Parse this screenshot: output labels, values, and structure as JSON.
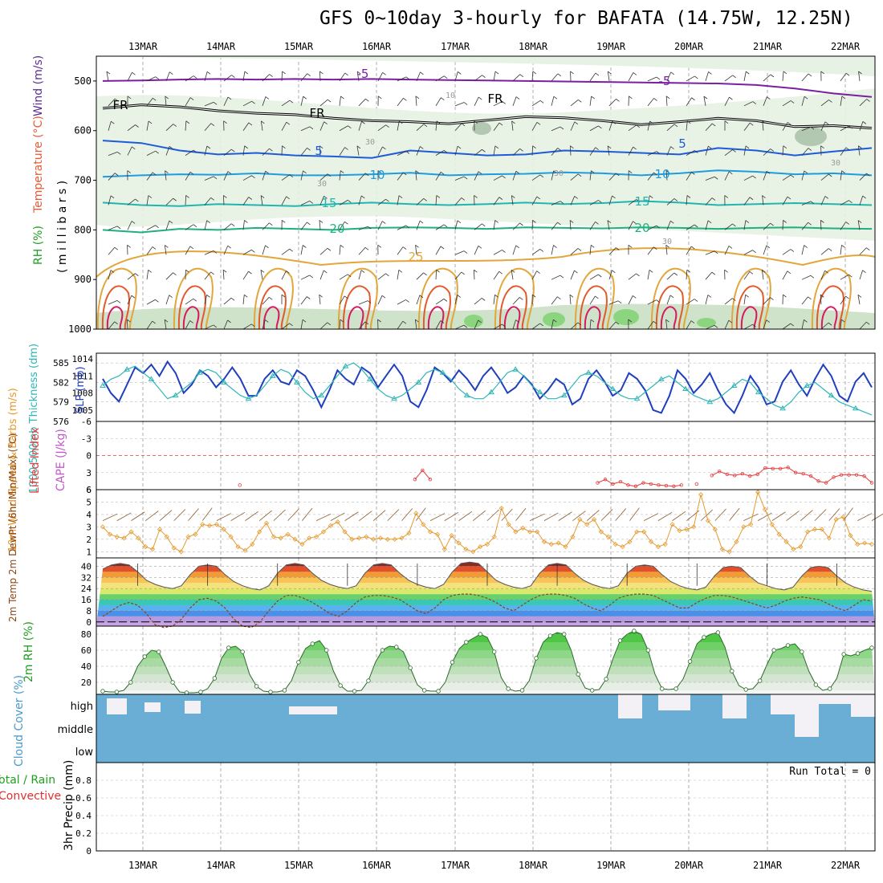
{
  "title": "GFS 0~10day 3-hourly for BAFATA (14.75W, 12.25N)",
  "date_labels": [
    "13MAR",
    "14MAR",
    "15MAR",
    "16MAR",
    "17MAR",
    "18MAR",
    "19MAR",
    "20MAR",
    "21MAR",
    "22MAR"
  ],
  "colors": {
    "rh": "#2eb82e",
    "temperature": "#e85a36",
    "wind": "#5a2d91",
    "slp": "#1f3fbf",
    "thickness": "#2fb6b6",
    "lifted_index": "#e33d3d",
    "cape": "#c05ac8",
    "wind10": "#e59a2e",
    "temp2m": "#8b4513",
    "rh2m": "#20a020",
    "cloud": "#6aaed6",
    "precip_total": "#20a020",
    "precip_conv": "#e33030"
  },
  "chart_data": [
    {
      "type": "line",
      "panel": "upper-air cross section",
      "ylabel_parts": [
        "RH (%)",
        "Temperature (°C)",
        "Wind (m/s)"
      ],
      "ylabel_units": "( m i l l i b a r s )",
      "yticks": [
        "500",
        "600",
        "700",
        "800",
        "900",
        "1000"
      ],
      "ylim": [
        1000,
        450
      ],
      "isotherm_labels": [
        "-5",
        "FR",
        "5",
        "10",
        "15",
        "20",
        "25"
      ],
      "rh_labels": [
        "10",
        "30",
        "30",
        "30",
        "30",
        "30"
      ],
      "isotherms": [
        {
          "label": "-5",
          "p": [
            500,
            499,
            497,
            496,
            497,
            496,
            497,
            496,
            497,
            498,
            499,
            500,
            501,
            502,
            503,
            504,
            505,
            508,
            515,
            525,
            532
          ]
        },
        {
          "label": "FR",
          "p": [
            555,
            548,
            552,
            560,
            565,
            568,
            575,
            580,
            582,
            586,
            579,
            572,
            574,
            580,
            588,
            582,
            575,
            580,
            592,
            590,
            595
          ]
        },
        {
          "label": "5",
          "p": [
            620,
            625,
            640,
            648,
            645,
            650,
            652,
            655,
            640,
            645,
            650,
            648,
            640,
            642,
            645,
            648,
            635,
            640,
            650,
            642,
            635
          ]
        },
        {
          "label": "10",
          "p": [
            693,
            690,
            688,
            689,
            686,
            690,
            690,
            688,
            685,
            690,
            688,
            687,
            684,
            686,
            690,
            686,
            680,
            683,
            688,
            686,
            690
          ]
        },
        {
          "label": "15",
          "p": [
            745,
            750,
            752,
            748,
            750,
            752,
            748,
            745,
            748,
            750,
            748,
            745,
            748,
            746,
            742,
            745,
            750,
            748,
            746,
            748,
            750
          ]
        },
        {
          "label": "20",
          "p": [
            800,
            805,
            798,
            800,
            796,
            798,
            800,
            796,
            795,
            796,
            798,
            795,
            796,
            797,
            795,
            796,
            798,
            796,
            795,
            797,
            798
          ]
        }
      ]
    },
    {
      "type": "line",
      "panel": "SLP / thickness",
      "ylabel_left": "1000-500mb Thickness (dm)",
      "ylabel_right": "SLP (mb)",
      "left_ticks": [
        "585",
        "582",
        "579",
        "576"
      ],
      "right_ticks": [
        "1014",
        "1011",
        "1008",
        "1005"
      ],
      "series": [
        {
          "name": "SLP (mb)",
          "values": [
            1010.5,
            1008,
            1006.5,
            1009.5,
            1012.5,
            1011.5,
            1013,
            1011,
            1013.5,
            1011.5,
            1008,
            1009.5,
            1012,
            1011,
            1009,
            1010.5,
            1012.5,
            1010.5,
            1007.5,
            1007.5,
            1010.5,
            1012,
            1010,
            1009.5,
            1012,
            1011,
            1008.5,
            1005.5,
            1008.5,
            1012,
            1010.5,
            1009.5,
            1012.5,
            1011.5,
            1009,
            1011,
            1013,
            1011,
            1006.5,
            1005.5,
            1008.5,
            1012.5,
            1011.5,
            1010,
            1012,
            1010.5,
            1008.5,
            1011,
            1012.5,
            1010.5,
            1008,
            1009,
            1011,
            1009.5,
            1007,
            1008.5,
            1010.5,
            1009.5,
            1006,
            1007,
            1010.5,
            1012,
            1010,
            1007.5,
            1008.5,
            1011.5,
            1010.5,
            1008.5,
            1005,
            1004.5,
            1007.5,
            1012,
            1010.5,
            1008,
            1009.5,
            1011.5,
            1008.5,
            1006,
            1004.5,
            1007.5,
            1011,
            1009,
            1006,
            1006.5,
            1010,
            1012,
            1009.5,
            1007.5,
            1010.5,
            1013,
            1011,
            1007.5,
            1006.5,
            1010,
            1011.5,
            1009
          ]
        },
        {
          "name": "1000-500mb Thickness (dm)",
          "values": [
            581.5,
            582.5,
            583,
            584,
            584.5,
            583.5,
            582.5,
            581,
            579.5,
            580,
            581,
            582,
            583.5,
            584,
            583.5,
            582,
            581,
            580,
            579.5,
            580,
            581.5,
            583,
            584,
            583.5,
            582,
            580.5,
            579.5,
            580,
            581.5,
            583,
            584.5,
            585,
            584,
            582.5,
            581,
            580,
            579.5,
            580,
            581,
            582,
            583.5,
            584,
            583.5,
            582.5,
            581,
            580,
            579.5,
            579.5,
            580.5,
            582,
            583.5,
            584,
            583,
            581.5,
            580.5,
            579.5,
            579.5,
            580,
            581.5,
            583,
            583.5,
            583,
            582,
            581,
            580,
            579.5,
            579.5,
            580.5,
            581.5,
            582.5,
            583,
            582,
            581,
            580,
            579.5,
            579,
            579.5,
            580.5,
            581.5,
            582.5,
            582,
            580.5,
            579.5,
            578.5,
            578,
            579,
            580.5,
            581.5,
            582,
            581,
            580,
            579,
            578.5,
            578,
            577.5,
            577
          ]
        }
      ]
    },
    {
      "type": "line",
      "panel": "Lifted Index / CAPE",
      "ylabel_left": "Lifted Index",
      "ylabel_right": "CAPE (J/kg)",
      "yticks": [
        "-6",
        "-3",
        "0",
        "3",
        "6"
      ],
      "ylim": [
        -6,
        6
      ],
      "series": [
        {
          "name": "Lifted Index",
          "values": [
            null,
            null,
            null,
            null,
            null,
            null,
            null,
            null,
            null,
            null,
            null,
            null,
            null,
            null,
            null,
            null,
            null,
            null,
            5.2,
            null,
            null,
            null,
            null,
            null,
            null,
            null,
            null,
            null,
            null,
            null,
            null,
            null,
            null,
            null,
            null,
            null,
            null,
            null,
            null,
            null,
            null,
            4.2,
            2.6,
            4.2,
            null,
            null,
            null,
            null,
            null,
            null,
            null,
            null,
            null,
            null,
            null,
            null,
            null,
            null,
            null,
            null,
            null,
            null,
            null,
            null,
            null,
            4.8,
            4.2,
            5.0,
            4.6,
            5.2,
            5.4,
            4.8,
            5.0,
            5.2,
            5.3,
            5.4,
            5.2,
            null,
            5.0,
            null,
            3.5,
            2.8,
            3.3,
            3.5,
            3.2,
            3.6,
            3.3,
            2.2,
            2.3,
            2.3,
            2.1,
            3.0,
            3.2,
            3.6,
            4.5,
            4.8,
            3.8,
            3.4,
            3.4,
            3.4,
            3.6,
            4.8
          ]
        }
      ]
    },
    {
      "type": "line",
      "panel": "10m wind",
      "ylabel": "10m Wind Speed & Barbs (m/s)",
      "yticks": [
        "1",
        "2",
        "3",
        "4",
        "5",
        "6"
      ],
      "ylim": [
        0.5,
        6
      ],
      "series": [
        {
          "name": "10m Wind Speed",
          "values": [
            3.0,
            2.4,
            2.2,
            2.1,
            2.6,
            2.1,
            1.4,
            1.2,
            2.8,
            2.2,
            1.3,
            1.0,
            2.2,
            2.4,
            3.2,
            3.1,
            3.2,
            2.8,
            2.2,
            1.4,
            1.1,
            1.6,
            2.6,
            3.3,
            2.2,
            2.1,
            2.4,
            2.0,
            1.6,
            2.1,
            2.2,
            2.6,
            3.1,
            3.4,
            2.6,
            2.0,
            2.1,
            2.2,
            2.0,
            2.1,
            2.0,
            2.0,
            2.1,
            2.5,
            4.1,
            3.2,
            2.6,
            2.4,
            1.2,
            2.3,
            1.7,
            1.2,
            1.0,
            1.4,
            1.6,
            2.2,
            4.5,
            3.2,
            2.6,
            2.9,
            2.6,
            2.6,
            1.8,
            1.6,
            1.7,
            1.4,
            2.2,
            3.6,
            3.2,
            3.6,
            2.6,
            2.2,
            1.6,
            1.4,
            1.8,
            2.6,
            2.6,
            1.8,
            1.4,
            1.6,
            3.2,
            2.7,
            2.8,
            3.0,
            5.6,
            3.5,
            2.8,
            1.2,
            1.0,
            1.8,
            3.0,
            3.2,
            5.8,
            4.4,
            3.2,
            2.4,
            1.8,
            1.2,
            1.4,
            2.6,
            2.8,
            2.8,
            2.1,
            3.6,
            3.8,
            2.3,
            1.6,
            1.7,
            1.6
          ]
        }
      ]
    },
    {
      "type": "area",
      "panel": "2m temperature",
      "ylabel": "2m Temp 2m DewPt (6hr Min/Max) (°C)",
      "yticks": [
        "0",
        "8",
        "16",
        "24",
        "32",
        "40"
      ],
      "ylim": [
        -3,
        46
      ],
      "series": [
        {
          "name": "2m Temp",
          "values": [
            38,
            41,
            42,
            41,
            36,
            30,
            27,
            25,
            24,
            26,
            34,
            40,
            41,
            40,
            34,
            29,
            26,
            24,
            23,
            26,
            35,
            41,
            42,
            41,
            35,
            30,
            27,
            25,
            24,
            26,
            35,
            41,
            42,
            41,
            35,
            30,
            27,
            25,
            24,
            27,
            36,
            42,
            43,
            42,
            36,
            30,
            27,
            25,
            24,
            26,
            35,
            41,
            42,
            41,
            35,
            30,
            27,
            25,
            24,
            26,
            35,
            40,
            41,
            40,
            34,
            29,
            26,
            24,
            23,
            25,
            33,
            39,
            40,
            39,
            33,
            28,
            26,
            24,
            23,
            25,
            33,
            39,
            40,
            39,
            33,
            28,
            25,
            23,
            22
          ]
        },
        {
          "name": "2m DewPt",
          "values": [
            4,
            8,
            12,
            14,
            12,
            6,
            -2,
            -4,
            -3,
            2,
            10,
            16,
            17,
            15,
            10,
            2,
            -3,
            -4,
            0,
            8,
            15,
            19,
            19,
            17,
            14,
            10,
            6,
            4,
            8,
            14,
            18,
            19,
            19,
            18,
            16,
            12,
            8,
            6,
            10,
            16,
            19,
            20,
            20,
            19,
            17,
            14,
            10,
            8,
            12,
            16,
            19,
            20,
            20,
            19,
            17,
            13,
            10,
            8,
            12,
            17,
            19,
            20,
            20,
            19,
            16,
            13,
            10,
            10,
            14,
            17,
            19,
            19,
            18,
            16,
            14,
            12,
            10,
            12,
            15,
            17,
            18,
            17,
            16,
            13,
            10,
            8,
            12,
            16,
            15
          ]
        }
      ]
    },
    {
      "type": "area",
      "panel": "2m RH",
      "ylabel": "2m RH (%)",
      "yticks": [
        "20",
        "40",
        "60",
        "80"
      ],
      "ylim": [
        5,
        90
      ],
      "series": [
        {
          "name": "2m RH",
          "values": [
            9,
            8,
            8,
            10,
            20,
            40,
            52,
            60,
            58,
            40,
            20,
            8,
            7,
            7,
            8,
            12,
            25,
            50,
            63,
            65,
            58,
            30,
            15,
            9,
            8,
            8,
            10,
            22,
            45,
            62,
            68,
            72,
            60,
            34,
            16,
            9,
            9,
            10,
            22,
            45,
            60,
            65,
            64,
            58,
            38,
            17,
            10,
            9,
            9,
            20,
            45,
            62,
            70,
            75,
            80,
            76,
            58,
            26,
            12,
            9,
            10,
            22,
            50,
            70,
            78,
            82,
            80,
            60,
            30,
            13,
            10,
            11,
            24,
            50,
            72,
            80,
            84,
            80,
            60,
            30,
            12,
            11,
            12,
            24,
            46,
            68,
            76,
            80,
            82,
            64,
            34,
            16,
            11,
            12,
            22,
            42,
            60,
            62,
            66,
            68,
            58,
            34,
            17,
            10,
            12,
            25,
            55,
            53,
            56,
            60,
            63
          ]
        }
      ]
    },
    {
      "type": "area",
      "panel": "Cloud Cover",
      "ylabel": "Cloud Cover (%)",
      "levels": [
        "high",
        "middle",
        "low"
      ]
    },
    {
      "type": "bar",
      "panel": "3hr Precip",
      "ylabel": "3hr Precip (mm)",
      "legend_parts": [
        "Total / Rain",
        "Convective"
      ],
      "yticks": [
        "0",
        "0.2",
        "0.4",
        "0.6",
        "0.8"
      ],
      "ylim": [
        0,
        1
      ],
      "annotation": "Run Total = 0",
      "values": []
    }
  ]
}
